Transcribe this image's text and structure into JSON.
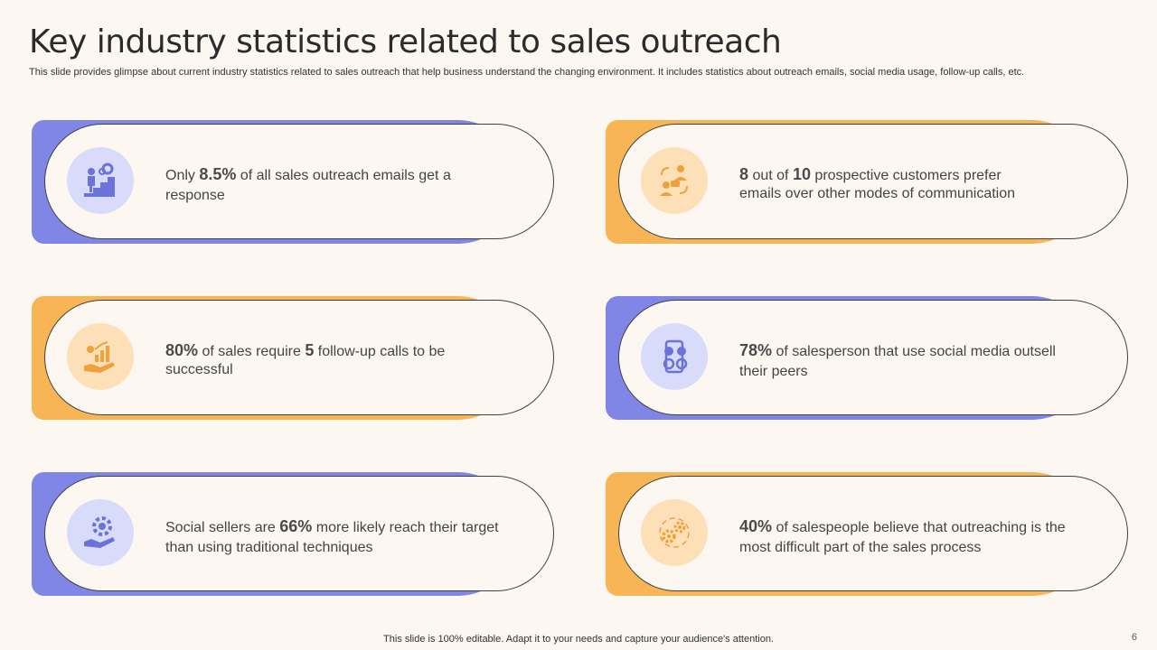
{
  "header": {
    "title": "Key industry statistics related to sales outreach",
    "subtitle": "This slide provides glimpse about current industry statistics related to sales outreach that help business understand the changing environment. It includes statistics about outreach emails, social media usage, follow-up calls, etc."
  },
  "cards": [
    {
      "icon": "stair-climb-icon",
      "pre1": "Only ",
      "s1": "8.5%",
      "mid": " of all sales outreach emails get a response",
      "s2": "",
      "post": ""
    },
    {
      "icon": "customer-chat-icon",
      "pre1": "",
      "s1": "8",
      "mid": " out of ",
      "s2": "10",
      "post": " prospective customers prefer emails over other modes of communication"
    },
    {
      "icon": "growth-hand-icon",
      "pre1": "",
      "s1": "80%",
      "mid": " of sales require ",
      "s2": "5",
      "post": " follow-up calls to be successful"
    },
    {
      "icon": "social-media-phone-icon",
      "pre1": "",
      "s1": "78%",
      "mid": " of salesperson that use social media outsell their peers",
      "s2": "",
      "post": ""
    },
    {
      "icon": "gear-hand-icon",
      "pre1": "Social sellers are ",
      "s1": "66%",
      "mid": " more likely reach their target than using traditional techniques",
      "s2": "",
      "post": ""
    },
    {
      "icon": "gear-cycle-icon",
      "pre1": "",
      "s1": "40%",
      "mid": " of salespeople believe that outreaching is the most difficult part of the sales process",
      "s2": "",
      "post": ""
    }
  ],
  "colors": {
    "purple": "#7f86e6",
    "orange": "#f8b556",
    "background": "#fcf7f1"
  },
  "footer": {
    "note": "This slide is 100% editable. Adapt it to your needs and capture your audience's attention.",
    "page": "6"
  }
}
